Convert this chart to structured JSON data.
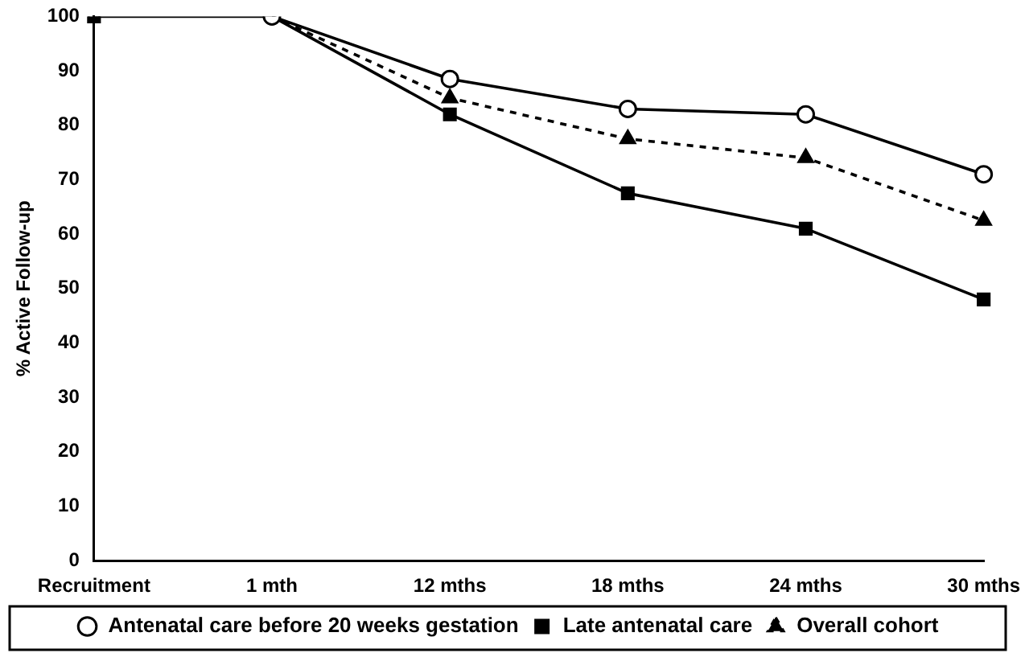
{
  "chart_data": {
    "type": "line",
    "ylabel": "% Active Follow-up",
    "categories": [
      "Recruitment",
      "1 mth",
      "12 mths",
      "18 mths",
      "24 mths",
      "30 mths"
    ],
    "ylim": [
      0,
      100
    ],
    "yticks": [
      0,
      10,
      20,
      30,
      40,
      50,
      60,
      70,
      80,
      90,
      100
    ],
    "grid": false,
    "legend": "bottom",
    "series": [
      {
        "name": "Antenatal care before 20 weeks gestation",
        "color": "#000000",
        "marker": "circle",
        "line_style": "solid",
        "values": [
          null,
          100,
          88.5,
          83,
          82,
          71
        ]
      },
      {
        "name": "Late antenatal care",
        "color": "#000000",
        "marker": "square",
        "line_style": "solid",
        "values": [
          100,
          100,
          82,
          67.5,
          61,
          48
        ]
      },
      {
        "name": "Overall cohort",
        "color": "#000000",
        "marker": "triangle",
        "line_style": "dashed",
        "values": [
          null,
          100,
          85,
          77.5,
          74,
          62.5
        ]
      }
    ]
  }
}
